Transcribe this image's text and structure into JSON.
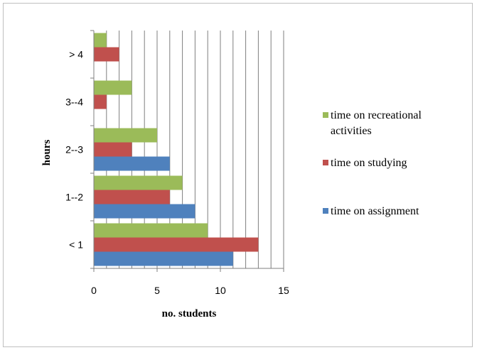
{
  "chart_data": {
    "type": "bar",
    "orientation": "horizontal",
    "categories": [
      "< 1",
      "1--2",
      "2--3",
      "3--4",
      "> 4"
    ],
    "series": [
      {
        "name": "time on assignment",
        "values": [
          11,
          8,
          6,
          0,
          0
        ],
        "color": "#4f81bd"
      },
      {
        "name": "time on studying",
        "values": [
          13,
          6,
          3,
          1,
          2
        ],
        "color": "#c0504d"
      },
      {
        "name": "time on recreational activities",
        "values": [
          9,
          7,
          5,
          3,
          1
        ],
        "color": "#9bbb59"
      }
    ],
    "legend_order": [
      2,
      1,
      0
    ],
    "legend_lines": [
      [
        "time on recreational",
        "activities"
      ],
      [
        "time on studying"
      ],
      [
        "time on assignment"
      ]
    ],
    "xlabel": "no. students",
    "ylabel": "hours",
    "xlim": [
      0,
      15
    ],
    "xticks": [
      0,
      5,
      10,
      15
    ],
    "grid": "vertical",
    "legend_position": "right"
  }
}
